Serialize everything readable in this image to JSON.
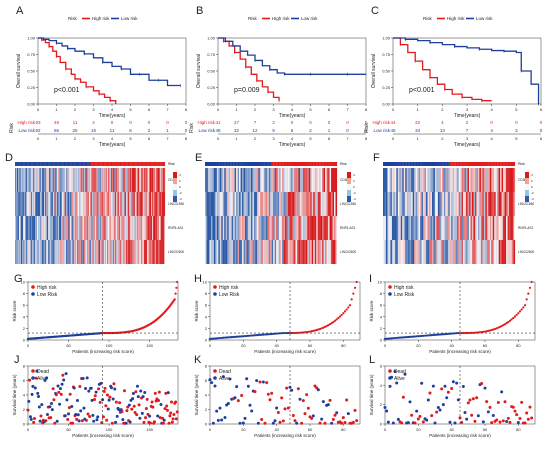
{
  "colors": {
    "high": "#e31a1c",
    "low": "#1f3f9c",
    "heat_high": "#d7191c",
    "heat_low": "#2c5aa6",
    "heat_mid": "#f7f7f7",
    "gray": "#888888",
    "text": "#222222"
  },
  "chart_data": [
    {
      "panel": "A",
      "type": "line",
      "subtype": "kaplan-meier",
      "ylabel": "Overall survival",
      "xlabel": "Time(years)",
      "legend": [
        "Risk",
        "High risk",
        "Low risk"
      ],
      "legend_position": "top",
      "xlim": [
        0,
        8
      ],
      "ylim": [
        0,
        1
      ],
      "xticks": [
        "0",
        "1",
        "2",
        "3",
        "4",
        "5",
        "6",
        "7",
        "8"
      ],
      "yticks": [
        "0.00",
        "0.25",
        "0.50",
        "0.75",
        "1.00"
      ],
      "pvalue": "p<0.001",
      "series": [
        {
          "name": "High risk",
          "x": [
            0,
            0.2,
            0.4,
            0.6,
            0.8,
            1.0,
            1.2,
            1.5,
            1.8,
            2.0,
            2.3,
            2.6,
            3.0,
            3.3,
            3.6,
            3.9,
            4.2
          ],
          "y": [
            1,
            0.97,
            0.93,
            0.87,
            0.8,
            0.72,
            0.63,
            0.53,
            0.45,
            0.38,
            0.33,
            0.26,
            0.2,
            0.15,
            0.1,
            0.05,
            0
          ]
        },
        {
          "name": "Low risk",
          "x": [
            0,
            0.3,
            0.6,
            1.0,
            1.3,
            1.6,
            2.0,
            2.5,
            3.0,
            3.5,
            4.0,
            4.5,
            5.0,
            5.5,
            6.0,
            6.5,
            7.0,
            7.7
          ],
          "y": [
            1,
            0.98,
            0.96,
            0.92,
            0.88,
            0.84,
            0.8,
            0.76,
            0.7,
            0.63,
            0.57,
            0.53,
            0.45,
            0.45,
            0.36,
            0.36,
            0.28,
            0.28
          ]
        }
      ],
      "risk_table": {
        "ylabel": "Risk",
        "xlabel": "Time(years)",
        "xticks": [
          "0",
          "1",
          "2",
          "3",
          "4",
          "5",
          "6",
          "7",
          "8"
        ],
        "rows": [
          {
            "name": "High risk",
            "values": [
              "93",
              "49",
              "11",
              "4",
              "0",
              "0",
              "0",
              "0",
              "0"
            ]
          },
          {
            "name": "Low risk",
            "values": [
              "92",
              "66",
              "25",
              "16",
              "11",
              "8",
              "2",
              "1",
              "0"
            ]
          }
        ]
      }
    },
    {
      "panel": "B",
      "type": "line",
      "subtype": "kaplan-meier",
      "ylabel": "Overall survival",
      "xlabel": "Time(years)",
      "legend": [
        "Risk",
        "High risk",
        "Low risk"
      ],
      "legend_position": "top",
      "xlim": [
        0,
        8
      ],
      "ylim": [
        0,
        1
      ],
      "xticks": [
        "0",
        "1",
        "2",
        "3",
        "4",
        "5",
        "6",
        "7",
        "8"
      ],
      "yticks": [
        "0.00",
        "0.25",
        "0.50",
        "0.75",
        "1.00"
      ],
      "pvalue": "p=0.009",
      "series": [
        {
          "name": "High risk",
          "x": [
            0,
            0.3,
            0.6,
            0.9,
            1.2,
            1.5,
            1.8,
            2.1,
            2.4,
            2.7,
            3.0,
            3.3
          ],
          "y": [
            1,
            0.95,
            0.88,
            0.78,
            0.68,
            0.56,
            0.45,
            0.35,
            0.26,
            0.18,
            0.1,
            0.05
          ]
        },
        {
          "name": "Low risk",
          "x": [
            0,
            0.4,
            0.8,
            1.2,
            1.6,
            2.0,
            2.4,
            2.8,
            3.2,
            3.6,
            4.0,
            5.0,
            6.0,
            7.0,
            8.0
          ],
          "y": [
            1,
            0.95,
            0.88,
            0.8,
            0.74,
            0.66,
            0.58,
            0.52,
            0.47,
            0.45,
            0.45,
            0.45,
            0.45,
            0.45,
            0.45
          ]
        }
      ],
      "risk_table": {
        "ylabel": "Risk",
        "xlabel": "Time(years)",
        "xticks": [
          "0",
          "1",
          "2",
          "3",
          "4",
          "5",
          "6",
          "7",
          "8"
        ],
        "rows": [
          {
            "name": "High risk",
            "values": [
              "41",
              "27",
              "7",
              "2",
              "0",
              "0",
              "0",
              "0",
              "0"
            ]
          },
          {
            "name": "Low risk",
            "values": [
              "48",
              "32",
              "12",
              "9",
              "5",
              "2",
              "1",
              "0",
              "0"
            ]
          }
        ]
      }
    },
    {
      "panel": "C",
      "type": "line",
      "subtype": "kaplan-meier",
      "ylabel": "Overall survival",
      "xlabel": "Time(years)",
      "legend": [
        "Risk",
        "High risk",
        "Low risk"
      ],
      "legend_position": "top",
      "xlim": [
        0,
        6
      ],
      "ylim": [
        0,
        1
      ],
      "xticks": [
        "0",
        "1",
        "2",
        "3",
        "4",
        "5",
        "6"
      ],
      "yticks": [
        "0.00",
        "0.25",
        "0.50",
        "0.75",
        "1.00"
      ],
      "pvalue": "p<0.001",
      "series": [
        {
          "name": "High risk",
          "x": [
            0,
            0.3,
            0.6,
            0.9,
            1.2,
            1.5,
            1.8,
            2.1,
            2.4,
            2.8,
            3.2,
            3.6,
            4.0
          ],
          "y": [
            1,
            0.9,
            0.78,
            0.65,
            0.52,
            0.4,
            0.3,
            0.22,
            0.15,
            0.1,
            0.07,
            0.05,
            0.05
          ]
        },
        {
          "name": "Low risk",
          "x": [
            0,
            0.5,
            1.0,
            1.5,
            2.0,
            2.5,
            3.0,
            3.5,
            4.0,
            4.5,
            5.0,
            5.2,
            5.6,
            5.9
          ],
          "y": [
            1,
            0.98,
            0.96,
            0.93,
            0.9,
            0.87,
            0.85,
            0.83,
            0.81,
            0.8,
            0.78,
            0.5,
            0.3,
            0
          ]
        }
      ],
      "risk_table": {
        "ylabel": "Risk",
        "xlabel": "Time(years)",
        "xticks": [
          "0",
          "1",
          "2",
          "3",
          "4",
          "5",
          "6"
        ],
        "rows": [
          {
            "name": "High risk",
            "values": [
              "44",
              "22",
              "4",
              "2",
              "0",
              "0",
              "0"
            ]
          },
          {
            "name": "Low risk",
            "values": [
              "45",
              "34",
              "13",
              "7",
              "4",
              "3",
              "0"
            ]
          }
        ]
      }
    },
    {
      "panel": "D",
      "type": "heatmap",
      "header": "Risk",
      "genes": [
        "CD3E",
        "LINC01560",
        "RNF5-AS1",
        "LINC02600"
      ],
      "scale_ticks": [
        "4",
        "2",
        "0",
        "-2",
        "-4"
      ],
      "n_samples": 185
    },
    {
      "panel": "E",
      "type": "heatmap",
      "header": "Risk",
      "genes": [
        "CD3E",
        "LINC01560",
        "RNF5-AS1",
        "LINC02600"
      ],
      "scale_ticks": [
        "4",
        "2",
        "0",
        "-2",
        "-4"
      ],
      "n_samples": 89
    },
    {
      "panel": "F",
      "type": "heatmap",
      "header": "Risk",
      "genes": [
        "CD3E",
        "LINC01560",
        "RNF5-AS1",
        "LINC02600"
      ],
      "scale_ticks": [
        "4",
        "2",
        "0",
        "-2",
        "-4"
      ],
      "n_samples": 89
    },
    {
      "panel": "G",
      "type": "scatter",
      "subtype": "risk-curve",
      "ylabel": "Risk score",
      "xlabel": "Patients (increasing risk score)",
      "legend": [
        "High risk",
        "Low Risk"
      ],
      "legend_position": "top-left",
      "xlim": [
        0,
        185
      ],
      "ylim": [
        0,
        10
      ],
      "xticks": [
        "0",
        "50",
        "100",
        "150"
      ],
      "yticks": [
        "0",
        "2",
        "4",
        "6",
        "8",
        "10"
      ],
      "cutoff_patient": 92,
      "cutoff_score": 1.2,
      "n": 185
    },
    {
      "panel": "H",
      "type": "scatter",
      "subtype": "risk-curve",
      "ylabel": "Risk score",
      "xlabel": "Patients (increasing risk score)",
      "legend": [
        "High risk",
        "Low Risk"
      ],
      "legend_position": "top-left",
      "xlim": [
        0,
        90
      ],
      "ylim": [
        0,
        10
      ],
      "xticks": [
        "0",
        "20",
        "40",
        "60",
        "80"
      ],
      "yticks": [
        "0",
        "2",
        "4",
        "6",
        "8",
        "10"
      ],
      "cutoff_patient": 48,
      "cutoff_score": 1.2,
      "n": 89
    },
    {
      "panel": "I",
      "type": "scatter",
      "subtype": "risk-curve",
      "ylabel": "Risk score",
      "xlabel": "Patients (increasing risk score)",
      "legend": [
        "High risk",
        "Low Risk"
      ],
      "legend_position": "top-left",
      "xlim": [
        0,
        90
      ],
      "ylim": [
        0,
        10
      ],
      "xticks": [
        "0",
        "20",
        "40",
        "60",
        "80"
      ],
      "yticks": [
        "0",
        "2",
        "4",
        "6",
        "8",
        "10"
      ],
      "cutoff_patient": 45,
      "cutoff_score": 1.2,
      "n": 89
    },
    {
      "panel": "J",
      "type": "scatter",
      "subtype": "survival-status",
      "ylabel": "Survival time (years)",
      "xlabel": "Patients (increasing risk score)",
      "legend": [
        "Dead",
        "Alive"
      ],
      "legend_position": "top-left",
      "xlim": [
        0,
        185
      ],
      "ylim": [
        0,
        8
      ],
      "xticks": [
        "0",
        "50",
        "100",
        "150"
      ],
      "yticks": [
        "0",
        "2",
        "4",
        "6",
        "8"
      ],
      "cutoff_patient": 92,
      "n": 185
    },
    {
      "panel": "K",
      "type": "scatter",
      "subtype": "survival-status",
      "ylabel": "Survival time (years)",
      "xlabel": "Patients (increasing risk score)",
      "legend": [
        "Dead",
        "Alive"
      ],
      "legend_position": "top-left",
      "xlim": [
        0,
        90
      ],
      "ylim": [
        0,
        8
      ],
      "xticks": [
        "0",
        "20",
        "40",
        "60",
        "80"
      ],
      "yticks": [
        "0",
        "2",
        "4",
        "6",
        "8"
      ],
      "cutoff_patient": 48,
      "n": 89
    },
    {
      "panel": "L",
      "type": "scatter",
      "subtype": "survival-status",
      "ylabel": "Survival time (years)",
      "xlabel": "Patients (increasing risk score)",
      "legend": [
        "Dead",
        "Alive"
      ],
      "legend_position": "top-left",
      "xlim": [
        0,
        90
      ],
      "ylim": [
        0,
        6
      ],
      "xticks": [
        "0",
        "20",
        "40",
        "60",
        "80"
      ],
      "yticks": [
        "0",
        "2",
        "4",
        "6"
      ],
      "cutoff_patient": 45,
      "n": 89
    }
  ]
}
